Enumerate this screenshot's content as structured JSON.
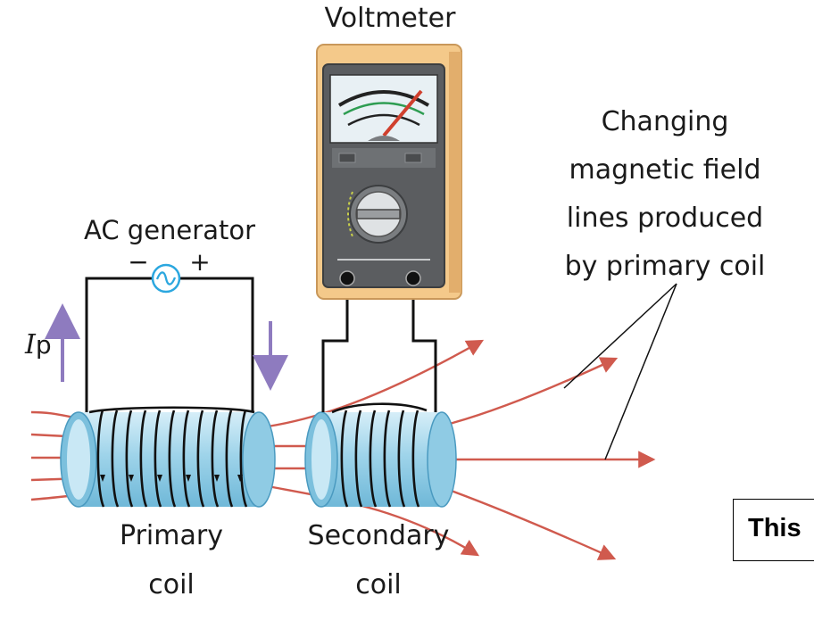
{
  "labels": {
    "voltmeter": "Voltmeter",
    "changing_line1": "Changing",
    "changing_line2": "magnetic field",
    "changing_line3": "lines produced",
    "changing_line4": "by primary coil",
    "ac_generator": "AC generator",
    "minus_sign": "−",
    "plus_sign": "+",
    "current_symbol": "I",
    "current_subscript": "p",
    "primary_line1": "Primary",
    "primary_line2": "coil",
    "secondary_line1": "Secondary",
    "secondary_line2": "coil"
  },
  "note": {
    "text": "This"
  },
  "colors": {
    "field_line": "#d05a4e",
    "coil_body": "#9fd4ea",
    "coil_wire": "#111111",
    "current_arrow": "#8e7bbf",
    "generator": "#2ba7df",
    "meter_case": "#f4c98a",
    "meter_face": "#5b5d60",
    "needle": "#d0402e"
  },
  "icons": {
    "generator": "ac-sine-source-icon",
    "meter": "analog-voltmeter-icon"
  }
}
